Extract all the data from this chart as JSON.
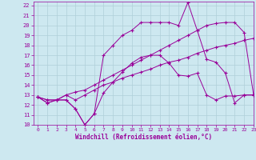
{
  "xlabel": "Windchill (Refroidissement éolien,°C)",
  "bg_color": "#cde8f0",
  "grid_color": "#b0cfd8",
  "line_color": "#990099",
  "xlim": [
    -0.5,
    23
  ],
  "ylim": [
    10,
    22.4
  ],
  "yticks": [
    10,
    11,
    12,
    13,
    14,
    15,
    16,
    17,
    18,
    19,
    20,
    21,
    22
  ],
  "xticks": [
    0,
    1,
    2,
    3,
    4,
    5,
    6,
    7,
    8,
    9,
    10,
    11,
    12,
    13,
    14,
    15,
    16,
    17,
    18,
    19,
    20,
    21,
    22,
    23
  ],
  "series": [
    [
      12.8,
      12.2,
      12.5,
      12.5,
      11.6,
      10.0,
      11.1,
      13.2,
      14.3,
      15.3,
      16.2,
      16.8,
      17.0,
      17.0,
      16.2,
      15.0,
      14.9,
      15.2,
      13.0,
      12.5,
      12.9,
      12.9,
      13.0,
      13.0
    ],
    [
      12.8,
      12.5,
      12.5,
      13.0,
      12.5,
      13.0,
      13.5,
      14.0,
      14.3,
      14.7,
      15.0,
      15.3,
      15.6,
      16.0,
      16.3,
      16.5,
      16.8,
      17.2,
      17.5,
      17.8,
      18.0,
      18.2,
      18.5,
      18.7
    ],
    [
      12.8,
      12.5,
      12.5,
      13.0,
      13.3,
      13.5,
      14.0,
      14.5,
      15.0,
      15.5,
      16.0,
      16.5,
      17.0,
      17.5,
      18.0,
      18.5,
      19.0,
      19.5,
      20.0,
      20.2,
      20.3,
      20.3,
      19.3,
      13.1
    ],
    [
      12.8,
      12.2,
      12.5,
      12.5,
      11.6,
      10.0,
      11.1,
      17.0,
      18.0,
      19.0,
      19.5,
      20.3,
      20.3,
      20.3,
      20.3,
      20.0,
      22.3,
      19.5,
      16.6,
      16.3,
      15.2,
      12.2,
      13.0,
      13.0
    ]
  ]
}
